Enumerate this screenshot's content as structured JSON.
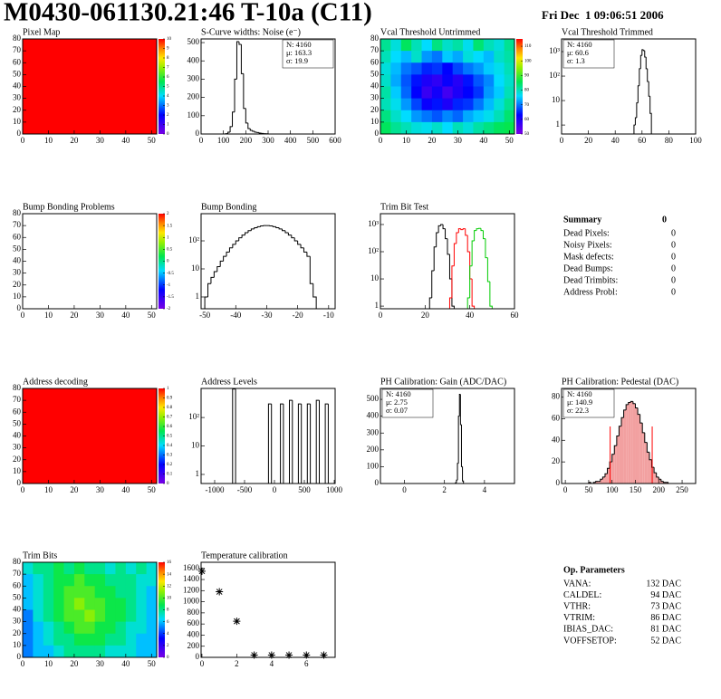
{
  "header": {
    "title": "M0430-061130.21:46 T-10a (C11)",
    "date": "Fri Dec  1 09:06:51 2006"
  },
  "chart_data": [
    {
      "type": "heatmap",
      "title": "Pixel Map",
      "xlim": [
        0,
        52
      ],
      "ylim": [
        0,
        80
      ],
      "xticks": [
        0,
        10,
        20,
        30,
        40,
        50
      ],
      "yticks": [
        0,
        10,
        20,
        30,
        40,
        50,
        60,
        70,
        80
      ],
      "zlim": [
        0,
        10
      ],
      "zticks": [
        0,
        1,
        2,
        3,
        4,
        5,
        6,
        7,
        8,
        9,
        10
      ],
      "values": [
        [
          10
        ]
      ]
    },
    {
      "type": "histogram",
      "title": "S-Curve widths: Noise (e⁻)",
      "xlim": [
        0,
        600
      ],
      "ylim": [
        0,
        520
      ],
      "xticks": [
        0,
        100,
        200,
        300,
        400,
        500,
        600
      ],
      "yticks": [
        0,
        100,
        200,
        300,
        400,
        500
      ],
      "color": "#000000",
      "bins": [
        100,
        110,
        120,
        130,
        140,
        150,
        160,
        170,
        180,
        190,
        200,
        210,
        220,
        230,
        240,
        250,
        260,
        270,
        280,
        290,
        300
      ],
      "values": [
        0,
        2,
        10,
        40,
        120,
        300,
        505,
        490,
        330,
        140,
        60,
        30,
        20,
        15,
        10,
        8,
        5,
        3,
        2,
        1
      ],
      "stats": [
        {
          "text": "N: 4160",
          "color": "#000000"
        },
        {
          "text": "μ: 163.3",
          "color": "#000000"
        },
        {
          "text": "σ: 19.9",
          "color": "#000000"
        }
      ]
    },
    {
      "type": "heatmap",
      "title": "Vcal Threshold Untrimmed",
      "xlim": [
        0,
        52
      ],
      "ylim": [
        0,
        80
      ],
      "xticks": [
        0,
        10,
        20,
        30,
        40,
        50
      ],
      "yticks": [
        0,
        10,
        20,
        30,
        40,
        50,
        60,
        70,
        80
      ],
      "zlim": [
        50,
        115
      ],
      "zticks": [
        50,
        60,
        70,
        80,
        90,
        100,
        110
      ],
      "values": [
        [
          82,
          78,
          85,
          80,
          76,
          83,
          79,
          81,
          77,
          84,
          80,
          78,
          82
        ],
        [
          80,
          76,
          74,
          79,
          72,
          70,
          75,
          73,
          78,
          76,
          74,
          79,
          81
        ],
        [
          78,
          74,
          70,
          68,
          65,
          66,
          63,
          67,
          70,
          72,
          75,
          77,
          80
        ],
        [
          79,
          73,
          68,
          64,
          60,
          58,
          62,
          59,
          64,
          68,
          71,
          76,
          79
        ],
        [
          81,
          75,
          69,
          63,
          57,
          61,
          56,
          60,
          63,
          66,
          72,
          75,
          80
        ],
        [
          80,
          77,
          72,
          67,
          62,
          64,
          60,
          65,
          66,
          70,
          74,
          78,
          82
        ],
        [
          83,
          79,
          76,
          72,
          70,
          68,
          71,
          69,
          73,
          75,
          77,
          80,
          84
        ],
        [
          85,
          82,
          80,
          78,
          77,
          79,
          76,
          80,
          78,
          81,
          83,
          85,
          86
        ]
      ]
    },
    {
      "type": "histogram",
      "title": "Vcal Threshold Trimmed",
      "log_y": true,
      "xlim": [
        0,
        100
      ],
      "ylim": [
        0.43,
        3300
      ],
      "xticks": [
        0,
        20,
        40,
        60,
        80,
        100
      ],
      "yticks": [
        1,
        10,
        {
          "value": 100,
          "label": "10²"
        },
        {
          "value": 1000,
          "label": "10³"
        }
      ],
      "color": "#000000",
      "bins": [
        54,
        55,
        56,
        57,
        58,
        59,
        60,
        61,
        62,
        63,
        64,
        65,
        66,
        67
      ],
      "values": [
        1,
        2,
        8,
        40,
        200,
        700,
        1200,
        1100,
        600,
        200,
        60,
        15,
        3
      ],
      "stats": [
        {
          "text": "N: 4160",
          "color": "#000000"
        },
        {
          "text": "μ: 60.6",
          "color": "#000000"
        },
        {
          "text": "σ:  1.3",
          "color": "#000000"
        }
      ]
    },
    {
      "type": "heatmap",
      "title": "Bump Bonding Problems",
      "xlim": [
        0,
        52
      ],
      "ylim": [
        0,
        80
      ],
      "xticks": [
        0,
        10,
        20,
        30,
        40,
        50
      ],
      "yticks": [
        0,
        10,
        20,
        30,
        40,
        50,
        60,
        70,
        80
      ],
      "zlim": [
        -2,
        2
      ],
      "zticks": [
        -2,
        -1.5,
        -1,
        -0.5,
        0,
        0.5,
        1,
        1.5,
        2
      ],
      "values": []
    },
    {
      "type": "histogram",
      "title": "Bump Bonding",
      "log_y": true,
      "xlim": [
        -51.2,
        -7.9
      ],
      "ylim": [
        0.38,
        930
      ],
      "xticks": [
        -50,
        -40,
        -30,
        -20,
        -10
      ],
      "yticks": [
        1,
        10,
        {
          "value": 100,
          "label": "10²"
        }
      ],
      "color": "#000000",
      "bins": [
        -50,
        -49,
        -48,
        -47,
        -46,
        -45,
        -44,
        -43,
        -42,
        -41,
        -40,
        -39,
        -38,
        -37,
        -36,
        -35,
        -34,
        -33,
        -32,
        -31,
        -30,
        -29,
        -28,
        -27,
        -26,
        -25,
        -24,
        -23,
        -22,
        -21,
        -20,
        -19,
        -18,
        -17,
        -16,
        -15,
        -14
      ],
      "values": [
        1,
        3,
        5,
        8,
        12,
        19,
        28,
        40,
        56,
        75,
        100,
        128,
        160,
        195,
        230,
        265,
        295,
        320,
        340,
        350,
        350,
        340,
        320,
        295,
        265,
        230,
        195,
        160,
        128,
        100,
        75,
        56,
        40,
        28,
        3,
        1
      ]
    },
    {
      "type": "histogram",
      "title": "Trim Bit Test",
      "log_y": true,
      "xlim": [
        0,
        60
      ],
      "ylim": [
        0.8,
        2500
      ],
      "xticks": [
        0,
        20,
        40,
        60
      ],
      "yticks": [
        1,
        10,
        {
          "value": 100,
          "label": "10²"
        },
        {
          "value": 1000,
          "label": "10³"
        }
      ],
      "series": [
        {
          "color": "#000000",
          "bins": [
            22,
            23,
            24,
            25,
            26,
            27,
            28,
            29,
            30,
            31,
            32,
            33
          ],
          "values": [
            2,
            20,
            150,
            500,
            900,
            1000,
            700,
            300,
            80,
            10,
            1
          ]
        },
        {
          "color": "#ff0000",
          "bins": [
            31,
            32,
            33,
            34,
            35,
            36,
            37,
            38,
            39,
            40,
            41,
            42
          ],
          "values": [
            2,
            30,
            200,
            500,
            700,
            650,
            700,
            400,
            100,
            10,
            1
          ]
        },
        {
          "color": "#00cc00",
          "bins": [
            39,
            40,
            41,
            42,
            43,
            44,
            45,
            46,
            47,
            48,
            49,
            50
          ],
          "values": [
            2,
            30,
            250,
            600,
            700,
            720,
            600,
            300,
            60,
            8,
            1
          ]
        }
      ]
    },
    {
      "type": "heatmap",
      "title": "Address decoding",
      "xlim": [
        0,
        52
      ],
      "ylim": [
        0,
        80
      ],
      "xticks": [
        0,
        10,
        20,
        30,
        40,
        50
      ],
      "yticks": [
        0,
        10,
        20,
        30,
        40,
        50,
        60,
        70,
        80
      ],
      "zlim": [
        0,
        1
      ],
      "zticks": [
        0,
        0.1,
        0.2,
        0.3,
        0.4,
        0.5,
        0.6,
        0.7,
        0.8,
        0.9,
        1
      ],
      "values": [
        [
          1
        ]
      ]
    },
    {
      "type": "histogram",
      "title": "Address Levels",
      "log_y": true,
      "xlim": [
        -1227,
        1015
      ],
      "ylim": [
        0.48,
        1050
      ],
      "xticks": [
        -1000,
        -500,
        0,
        500,
        1000
      ],
      "yticks": [
        1,
        10,
        {
          "value": 100,
          "label": "10²"
        }
      ],
      "color": "#000000",
      "bins": [
        -1200,
        -1150,
        -1100,
        -1050,
        -1000,
        -950,
        -900,
        -850,
        -800,
        -750,
        -700,
        -650,
        -600,
        -550,
        -500,
        -450,
        -400,
        -350,
        -300,
        -250,
        -200,
        -150,
        -100,
        -50,
        0,
        50,
        100,
        150,
        200,
        250,
        300,
        350,
        400,
        450,
        500,
        550,
        600,
        650,
        700,
        750,
        800,
        850,
        900,
        950,
        1000
      ],
      "values": [
        0,
        0,
        0,
        0,
        0,
        0,
        0,
        0,
        0,
        0,
        1000,
        0,
        0,
        0,
        0,
        0,
        0,
        0,
        0,
        0,
        0,
        0,
        300,
        0,
        0,
        0,
        300,
        0,
        0,
        400,
        0,
        0,
        300,
        0,
        0,
        300,
        0,
        0,
        400,
        0,
        0,
        300,
        0,
        0
      ]
    },
    {
      "type": "histogram",
      "title": "PH Calibration: Gain (ADC/DAC)",
      "xlim": [
        -1.2,
        5.5
      ],
      "ylim": [
        0,
        565
      ],
      "xticks": [
        0,
        2,
        4
      ],
      "yticks": [
        0,
        100,
        200,
        300,
        400,
        500
      ],
      "color": "#000000",
      "bins": [
        2.55,
        2.6,
        2.65,
        2.7,
        2.75,
        2.8,
        2.85,
        2.9,
        2.95
      ],
      "values": [
        5,
        20,
        120,
        400,
        530,
        350,
        100,
        15
      ],
      "stats": [
        {
          "text": "N: 4160",
          "color": "#000000"
        },
        {
          "text": "μ: 2.75",
          "color": "#000000"
        },
        {
          "text": "σ: 0.07",
          "color": "#000000"
        }
      ]
    },
    {
      "type": "histogram",
      "title": "PH Calibration: Pedestal (DAC)",
      "xlim": [
        -8,
        279
      ],
      "ylim": [
        0,
        88
      ],
      "xticks": [
        0,
        50,
        100,
        150,
        200,
        250
      ],
      "yticks": [
        0,
        20,
        40,
        60,
        80
      ],
      "color": "#000000",
      "fill": "#f2a0a0",
      "bins": [
        50,
        55,
        60,
        65,
        70,
        75,
        80,
        85,
        90,
        95,
        100,
        105,
        110,
        115,
        120,
        125,
        130,
        135,
        140,
        145,
        150,
        155,
        160,
        165,
        170,
        175,
        180,
        185,
        190,
        195,
        200,
        205,
        210,
        215,
        220
      ],
      "values": [
        1,
        0,
        1,
        2,
        2,
        4,
        6,
        9,
        14,
        20,
        27,
        35,
        44,
        53,
        61,
        68,
        73,
        75,
        76,
        74,
        70,
        64,
        56,
        47,
        38,
        29,
        22,
        15,
        10,
        6,
        4,
        2,
        1,
        1
      ],
      "cut_lines": [
        96,
        186
      ],
      "cut_color": "#ff0000",
      "stats": [
        {
          "text": "N: 4160",
          "color": "#000000"
        },
        {
          "text": "μ: 140.9",
          "color": "#ff0000"
        },
        {
          "text": "σ: 22.3",
          "color": "#ff0000"
        }
      ]
    },
    {
      "type": "heatmap",
      "title": "Trim Bits",
      "xlim": [
        0,
        52
      ],
      "ylim": [
        0,
        80
      ],
      "xticks": [
        0,
        10,
        20,
        30,
        40,
        50
      ],
      "yticks": [
        0,
        10,
        20,
        30,
        40,
        50,
        60,
        70,
        80
      ],
      "zlim": [
        0,
        16
      ],
      "zticks": [
        0,
        2,
        4,
        6,
        8,
        10,
        12,
        14,
        16
      ],
      "values": [
        [
          7,
          8,
          8,
          9,
          8,
          9,
          8,
          8,
          7,
          8,
          7,
          8,
          7
        ],
        [
          6,
          7,
          8,
          9,
          9,
          10,
          9,
          9,
          8,
          8,
          8,
          7,
          7
        ],
        [
          6,
          7,
          8,
          9,
          10,
          10,
          10,
          9,
          9,
          8,
          8,
          7,
          6
        ],
        [
          6,
          7,
          8,
          9,
          10,
          11,
          10,
          10,
          9,
          9,
          8,
          7,
          6
        ],
        [
          5,
          7,
          8,
          9,
          10,
          10,
          11,
          10,
          9,
          9,
          8,
          7,
          6
        ],
        [
          5,
          6,
          7,
          8,
          9,
          10,
          10,
          9,
          9,
          8,
          7,
          7,
          6
        ],
        [
          5,
          6,
          7,
          8,
          8,
          9,
          9,
          9,
          8,
          8,
          7,
          6,
          6
        ],
        [
          5,
          6,
          6,
          7,
          8,
          8,
          8,
          8,
          7,
          7,
          7,
          6,
          6
        ]
      ]
    },
    {
      "type": "scatter",
      "title": "Temperature calibration",
      "xlim": [
        -0.05,
        7.65
      ],
      "ylim": [
        0,
        1710
      ],
      "xticks": [
        0,
        2,
        4,
        6
      ],
      "yticks": [
        0,
        200,
        400,
        600,
        800,
        1000,
        1200,
        1400,
        1600
      ],
      "color": "#000000",
      "x": [
        0,
        1,
        2,
        3,
        4,
        5,
        6,
        7
      ],
      "values": [
        1550,
        1180,
        650,
        40,
        40,
        40,
        40,
        40
      ]
    }
  ],
  "summary": {
    "title": "Summary",
    "total": 0,
    "rows": [
      {
        "label": "Dead Pixels:",
        "value": 0
      },
      {
        "label": "Noisy Pixels:",
        "value": 0
      },
      {
        "label": "Mask defects:",
        "value": 0
      },
      {
        "label": "Dead Bumps:",
        "value": 0
      },
      {
        "label": "Dead Trimbits:",
        "value": 0
      },
      {
        "label": "Address Probl:",
        "value": 0
      }
    ]
  },
  "op_parameters": {
    "title": "Op. Parameters",
    "rows": [
      {
        "label": "VANA:",
        "value": "132 DAC"
      },
      {
        "label": "CALDEL:",
        "value": "94 DAC"
      },
      {
        "label": "VTHR:",
        "value": "73 DAC"
      },
      {
        "label": "VTRIM:",
        "value": "86 DAC"
      },
      {
        "label": "IBIAS_DAC:",
        "value": "81 DAC"
      },
      {
        "label": "VOFFSETOP:",
        "value": "52 DAC"
      }
    ]
  }
}
